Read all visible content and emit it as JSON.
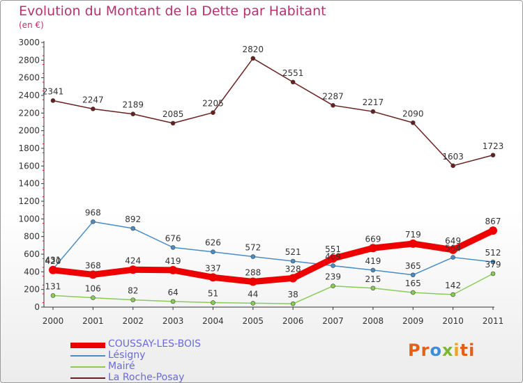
{
  "chart_data": {
    "type": "line",
    "title": "Evolution du Montant de la Dette par Habitant",
    "subtitle": "(en €)",
    "categories": [
      "2000",
      "2001",
      "2002",
      "2003",
      "2004",
      "2005",
      "2006",
      "2007",
      "2008",
      "2009",
      "2010",
      "2011"
    ],
    "ylim": [
      0,
      3000
    ],
    "yticks": [
      0,
      200,
      400,
      600,
      800,
      1000,
      1200,
      1400,
      1600,
      1800,
      2000,
      2200,
      2400,
      2600,
      2800,
      3000
    ],
    "grid": false,
    "legend_position": "bottom-left",
    "series": [
      {
        "name": "COUSSAY-LES-BOIS",
        "color": "#ee0000",
        "values": [
          420,
          368,
          424,
          419,
          337,
          288,
          328,
          551,
          669,
          719,
          649,
          867
        ]
      },
      {
        "name": "Lésigny",
        "color": "#4a8cc4",
        "values": [
          431,
          968,
          892,
          676,
          626,
          572,
          521,
          469,
          419,
          365,
          564,
          512
        ]
      },
      {
        "name": "Mairé",
        "color": "#88cc55",
        "values": [
          131,
          106,
          82,
          64,
          51,
          44,
          38,
          239,
          215,
          165,
          142,
          379
        ]
      },
      {
        "name": "La Roche-Posay",
        "color": "#6a1f1f",
        "values": [
          2341,
          2247,
          2189,
          2085,
          2205,
          2820,
          2551,
          2287,
          2217,
          2090,
          1603,
          1723
        ]
      }
    ],
    "data_labels": {
      "COUSSAY-LES-BOIS": [
        "420",
        "368",
        "424",
        "419",
        "337",
        "288",
        "328",
        "551",
        "669",
        "719",
        "649",
        "867"
      ],
      "Lésigny": [
        "431",
        "968",
        "892",
        "676",
        "626",
        "572",
        "521",
        "469",
        "419",
        "365",
        "564",
        "512"
      ],
      "Mairé": [
        "131",
        "106",
        "82",
        "64",
        "51",
        "44",
        "38",
        "239",
        "215",
        "165",
        "142",
        "379"
      ],
      "La Roche-Posay": [
        "2341",
        "2247",
        "2189",
        "2085",
        "2205",
        "2820",
        "2551",
        "2287",
        "2217",
        "2090",
        "1603",
        "1723"
      ]
    }
  },
  "logo_text": [
    "Pr",
    "o",
    "x",
    "i",
    "ti"
  ],
  "colors": {
    "title": "#b3336e",
    "legend_text": "#6a6ad8",
    "axis": "#333333",
    "tick_red": "#e00000"
  }
}
